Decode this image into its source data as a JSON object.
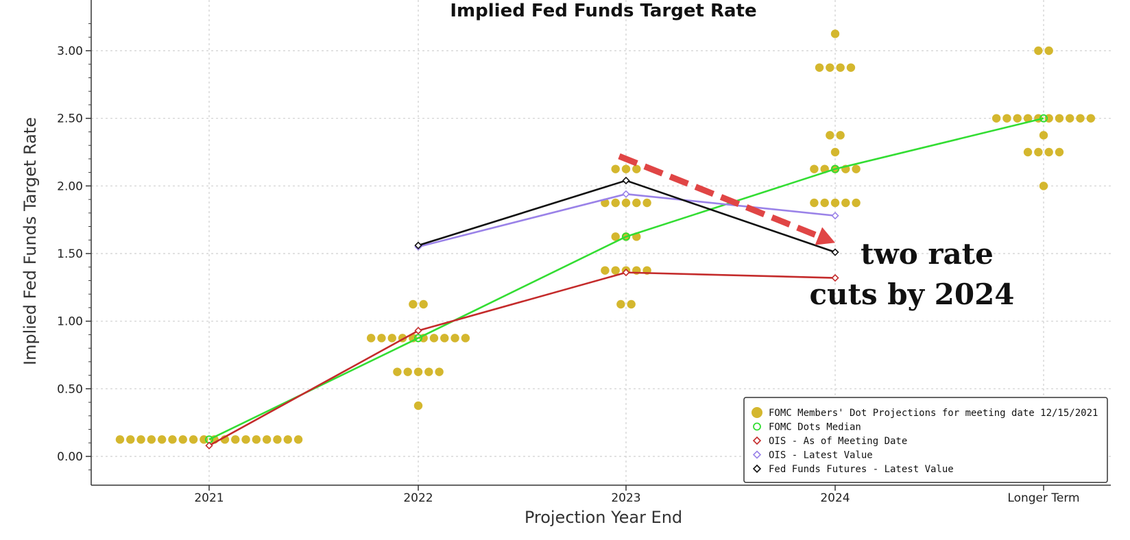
{
  "chart_data": {
    "type": "scatter",
    "title": "Implied Fed Funds Target Rate",
    "xlabel": "Projection Year End",
    "ylabel": "Implied Fed Funds Target Rate",
    "categories": [
      "2021",
      "2022",
      "2023",
      "2024",
      "Longer Term"
    ],
    "ylim": [
      -0.2,
      3.35
    ],
    "yticks": [
      0.0,
      0.5,
      1.0,
      1.5,
      2.0,
      2.5,
      3.0
    ],
    "ytick_labels": [
      "0.00",
      "0.50",
      "1.00",
      "1.50",
      "2.00",
      "2.50",
      "3.00"
    ],
    "grid": true,
    "dots": [
      {
        "category": "2021",
        "levels": [
          {
            "value": 0.125,
            "count": 18
          }
        ]
      },
      {
        "category": "2022",
        "levels": [
          {
            "value": 1.125,
            "count": 2
          },
          {
            "value": 0.875,
            "count": 10
          },
          {
            "value": 0.625,
            "count": 5
          },
          {
            "value": 0.375,
            "count": 1
          }
        ]
      },
      {
        "category": "2023",
        "levels": [
          {
            "value": 2.125,
            "count": 3
          },
          {
            "value": 1.875,
            "count": 5
          },
          {
            "value": 1.625,
            "count": 3
          },
          {
            "value": 1.375,
            "count": 5
          },
          {
            "value": 1.125,
            "count": 2
          }
        ]
      },
      {
        "category": "2024",
        "levels": [
          {
            "value": 3.125,
            "count": 1
          },
          {
            "value": 2.875,
            "count": 4
          },
          {
            "value": 2.375,
            "count": 2
          },
          {
            "value": 2.25,
            "count": 1
          },
          {
            "value": 2.125,
            "count": 5
          },
          {
            "value": 1.875,
            "count": 5
          }
        ]
      },
      {
        "category": "Longer Term",
        "levels": [
          {
            "value": 3.0,
            "count": 2
          },
          {
            "value": 2.5,
            "count": 10
          },
          {
            "value": 2.375,
            "count": 1
          },
          {
            "value": 2.25,
            "count": 4
          },
          {
            "value": 2.0,
            "count": 1
          }
        ]
      }
    ],
    "series": [
      {
        "name": "FOMC Dots Median",
        "color": "#33dd33",
        "points": [
          {
            "x": "2021",
            "y": 0.125
          },
          {
            "x": "2022",
            "y": 0.875
          },
          {
            "x": "2023",
            "y": 1.625
          },
          {
            "x": "2024",
            "y": 2.125
          },
          {
            "x": "Longer Term",
            "y": 2.5
          }
        ]
      },
      {
        "name": "OIS - As of Meeting Date",
        "color": "#c42b2b",
        "points": [
          {
            "x": "2021",
            "y": 0.08
          },
          {
            "x": "2022",
            "y": 0.93
          },
          {
            "x": "2023",
            "y": 1.36
          },
          {
            "x": "2024",
            "y": 1.32
          }
        ]
      },
      {
        "name": "OIS - Latest Value",
        "color": "#9a82e8",
        "points": [
          {
            "x": "2022",
            "y": 1.55
          },
          {
            "x": "2023",
            "y": 1.94
          },
          {
            "x": "2024",
            "y": 1.78
          }
        ]
      },
      {
        "name": "Fed Funds Futures - Latest Value",
        "color": "#111111",
        "points": [
          {
            "x": "2022",
            "y": 1.56
          },
          {
            "x": "2023",
            "y": 2.04
          },
          {
            "x": "2024",
            "y": 1.51
          }
        ]
      }
    ],
    "legend": {
      "position": "bottom-right",
      "entries": [
        {
          "label": "FOMC Members' Dot Projections for meeting date 12/15/2021",
          "color": "#d4b72e",
          "marker": "dot"
        },
        {
          "label": "FOMC Dots Median",
          "color": "#33dd33",
          "marker": "circle"
        },
        {
          "label": "OIS - As of Meeting Date",
          "color": "#c42b2b",
          "marker": "diamond"
        },
        {
          "label": "OIS - Latest Value",
          "color": "#9a82e8",
          "marker": "diamond"
        },
        {
          "label": "Fed Funds Futures - Latest Value",
          "color": "#111111",
          "marker": "diamond"
        }
      ]
    },
    "annotation": {
      "lines": [
        "two rate",
        "cuts by 2024"
      ],
      "arrow_color": "#e04545",
      "arrow_from": {
        "x": "2023",
        "y": 2.22
      },
      "arrow_to": {
        "x": "2024",
        "y": 1.58
      }
    }
  },
  "colors": {
    "dot": "#d4b72e",
    "grid": "#cfcfcf",
    "axis": "#333333"
  }
}
